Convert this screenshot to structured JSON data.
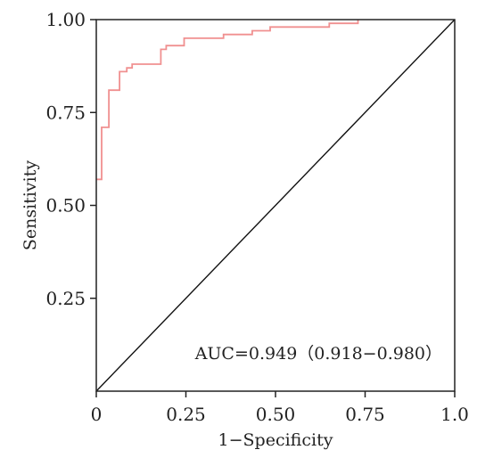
{
  "chart_data": {
    "type": "line",
    "xlabel": "1−Specificity",
    "ylabel": "Sensitivity",
    "xlim": [
      0,
      1.0
    ],
    "ylim": [
      0,
      1.0
    ],
    "x_ticks": [
      {
        "value": 0,
        "label": "0"
      },
      {
        "value": 0.25,
        "label": "0.25"
      },
      {
        "value": 0.5,
        "label": "0.50"
      },
      {
        "value": 0.75,
        "label": "0.75"
      },
      {
        "value": 1.0,
        "label": "1.0"
      }
    ],
    "y_ticks": [
      {
        "value": 0.25,
        "label": "0.25"
      },
      {
        "value": 0.5,
        "label": "0.50"
      },
      {
        "value": 0.75,
        "label": "0.75"
      },
      {
        "value": 1.0,
        "label": "1.00"
      }
    ],
    "grid": false,
    "annotation": "AUC=0.949（0.918−0.980）",
    "series": [
      {
        "color": "#f09090",
        "x": [
          0,
          0,
          0.015,
          0.015,
          0.035,
          0.035,
          0.065,
          0.065,
          0.085,
          0.085,
          0.1,
          0.1,
          0.18,
          0.18,
          0.195,
          0.195,
          0.245,
          0.245,
          0.355,
          0.355,
          0.435,
          0.435,
          0.485,
          0.485,
          0.65,
          0.65,
          0.73,
          0.73
        ],
        "y": [
          0.57,
          0.57,
          0.57,
          0.71,
          0.71,
          0.81,
          0.81,
          0.86,
          0.86,
          0.87,
          0.87,
          0.88,
          0.88,
          0.92,
          0.92,
          0.93,
          0.93,
          0.95,
          0.95,
          0.96,
          0.96,
          0.97,
          0.97,
          0.98,
          0.98,
          0.99,
          0.99,
          1.0
        ]
      },
      {
        "color": "#111111",
        "x": [
          0,
          1.0
        ],
        "y": [
          0,
          1.0
        ]
      }
    ]
  }
}
